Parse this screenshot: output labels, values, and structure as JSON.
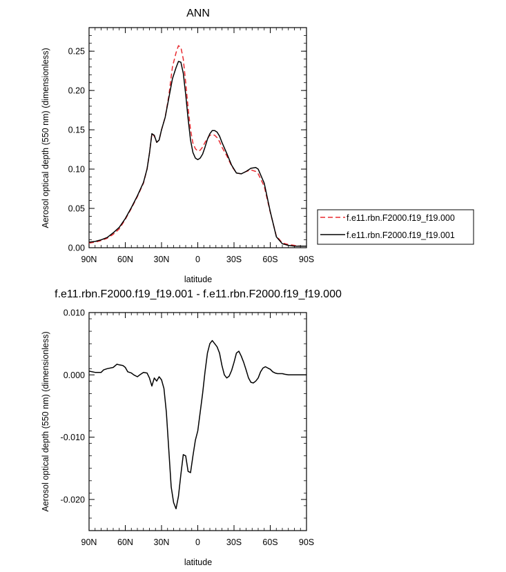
{
  "chart_data": [
    {
      "type": "line",
      "title": "ANN",
      "xlabel": "latitude",
      "ylabel": "Aerosol optical depth (550 nm) (dimensionless)",
      "xlim": [
        90,
        -90
      ],
      "ylim": [
        0.0,
        0.28
      ],
      "xticks": [
        90,
        60,
        30,
        0,
        -30,
        -60,
        -90
      ],
      "xtick_labels": [
        "90N",
        "60N",
        "30N",
        "0",
        "30S",
        "60S",
        "90S"
      ],
      "yticks": [
        0.0,
        0.05,
        0.1,
        0.15,
        0.2,
        0.25
      ],
      "ytick_labels": [
        "0.00",
        "0.05",
        "0.10",
        "0.15",
        "0.20",
        "0.25"
      ],
      "legend": "right",
      "series": [
        {
          "name": "f.e11.rbn.F2000.f19_f19.000",
          "color": "#e8292f",
          "dash": "dashed",
          "x": [
            90,
            85,
            80,
            75,
            70,
            65,
            60,
            55,
            50,
            45,
            42,
            40,
            38,
            36,
            34,
            32,
            30,
            27,
            24,
            21,
            18,
            16,
            14,
            12,
            10,
            8,
            6,
            4,
            2,
            0,
            -2,
            -4,
            -6,
            -8,
            -10,
            -12,
            -14,
            -16,
            -18,
            -20,
            -24,
            -28,
            -32,
            -36,
            -40,
            -44,
            -48,
            -50,
            -55,
            -60,
            -65,
            -70,
            -75,
            -80,
            -85,
            -90
          ],
          "y": [
            0.006,
            0.007,
            0.009,
            0.012,
            0.017,
            0.024,
            0.036,
            0.05,
            0.065,
            0.082,
            0.1,
            0.12,
            0.145,
            0.142,
            0.134,
            0.137,
            0.15,
            0.166,
            0.193,
            0.23,
            0.248,
            0.257,
            0.255,
            0.24,
            0.21,
            0.178,
            0.15,
            0.133,
            0.126,
            0.123,
            0.124,
            0.128,
            0.134,
            0.139,
            0.143,
            0.144,
            0.143,
            0.14,
            0.135,
            0.128,
            0.117,
            0.104,
            0.095,
            0.094,
            0.097,
            0.099,
            0.097,
            0.094,
            0.078,
            0.045,
            0.015,
            0.006,
            0.004,
            0.003,
            0.002,
            0.002
          ]
        },
        {
          "name": "f.e11.rbn.F2000.f19_f19.001",
          "color": "#000000",
          "dash": "solid",
          "x": [
            90,
            85,
            80,
            75,
            70,
            65,
            60,
            55,
            50,
            45,
            42,
            40,
            38,
            36,
            34,
            32,
            30,
            27,
            24,
            21,
            18,
            16,
            14,
            12,
            10,
            8,
            6,
            4,
            2,
            0,
            -2,
            -4,
            -6,
            -8,
            -10,
            -12,
            -14,
            -16,
            -18,
            -20,
            -24,
            -28,
            -32,
            -36,
            -40,
            -44,
            -48,
            -50,
            -55,
            -60,
            -65,
            -70,
            -75,
            -80,
            -85,
            -90
          ],
          "y": [
            0.007,
            0.008,
            0.01,
            0.013,
            0.019,
            0.026,
            0.037,
            0.051,
            0.066,
            0.083,
            0.1,
            0.12,
            0.145,
            0.143,
            0.134,
            0.137,
            0.15,
            0.166,
            0.19,
            0.215,
            0.229,
            0.237,
            0.236,
            0.222,
            0.195,
            0.164,
            0.137,
            0.121,
            0.114,
            0.112,
            0.114,
            0.119,
            0.128,
            0.138,
            0.145,
            0.149,
            0.149,
            0.147,
            0.142,
            0.134,
            0.12,
            0.105,
            0.095,
            0.094,
            0.097,
            0.101,
            0.102,
            0.1,
            0.082,
            0.046,
            0.014,
            0.005,
            0.003,
            0.002,
            0.002,
            0.002
          ]
        }
      ]
    },
    {
      "type": "line",
      "title": "f.e11.rbn.F2000.f19_f19.001 - f.e11.rbn.F2000.f19_f19.000",
      "xlabel": "latitude",
      "ylabel": "Aerosol optical depth (550 nm) (dimensionless)",
      "xlim": [
        90,
        -90
      ],
      "ylim": [
        -0.025,
        0.01
      ],
      "xticks": [
        90,
        60,
        30,
        0,
        -30,
        -60,
        -90
      ],
      "xtick_labels": [
        "90N",
        "60N",
        "30N",
        "0",
        "30S",
        "60S",
        "90S"
      ],
      "yticks": [
        -0.02,
        -0.01,
        0.0,
        0.01
      ],
      "ytick_labels": [
        "-0.020",
        "-0.010",
        "0.000",
        "0.010"
      ],
      "series": [
        {
          "color": "#000000",
          "dash": "solid",
          "x": [
            90,
            85,
            80,
            78,
            75,
            70,
            67,
            65,
            62,
            60,
            58,
            55,
            53,
            50,
            48,
            45,
            42,
            40,
            38,
            36,
            34,
            32,
            30,
            28,
            26,
            24,
            22,
            20,
            18,
            16,
            14,
            12,
            10,
            8,
            6,
            4,
            2,
            0,
            -2,
            -4,
            -6,
            -8,
            -10,
            -12,
            -14,
            -16,
            -18,
            -20,
            -22,
            -24,
            -26,
            -28,
            -30,
            -32,
            -34,
            -36,
            -38,
            -40,
            -42,
            -44,
            -46,
            -48,
            -50,
            -52,
            -54,
            -56,
            -58,
            -60,
            -62,
            -64,
            -66,
            -68,
            -70,
            -72,
            -75,
            -80,
            -85,
            -88,
            -90
          ],
          "y": [
            0.0006,
            0.0004,
            0.0004,
            0.0008,
            0.001,
            0.0012,
            0.0017,
            0.0016,
            0.0015,
            0.0012,
            0.0005,
            0.0003,
            0.0,
            -0.0003,
            0.0,
            0.0004,
            0.0003,
            -0.0005,
            -0.0018,
            -0.0005,
            -0.001,
            -0.0003,
            -0.0008,
            -0.0022,
            -0.006,
            -0.012,
            -0.018,
            -0.0205,
            -0.0215,
            -0.0195,
            -0.016,
            -0.0128,
            -0.013,
            -0.0155,
            -0.0157,
            -0.013,
            -0.0105,
            -0.009,
            -0.006,
            -0.003,
            0.0005,
            0.0035,
            0.005,
            0.0055,
            0.005,
            0.0045,
            0.0035,
            0.0015,
            0.0,
            -0.0005,
            -0.0002,
            0.0007,
            0.002,
            0.0035,
            0.0038,
            0.003,
            0.002,
            0.0008,
            -0.0005,
            -0.0012,
            -0.0013,
            -0.001,
            -0.0005,
            0.0005,
            0.0011,
            0.0013,
            0.0011,
            0.0009,
            0.0005,
            0.0003,
            0.0002,
            0.0002,
            0.0002,
            0.0001,
            0.0,
            0.0,
            0.0,
            0.0,
            0.0
          ]
        }
      ]
    }
  ]
}
